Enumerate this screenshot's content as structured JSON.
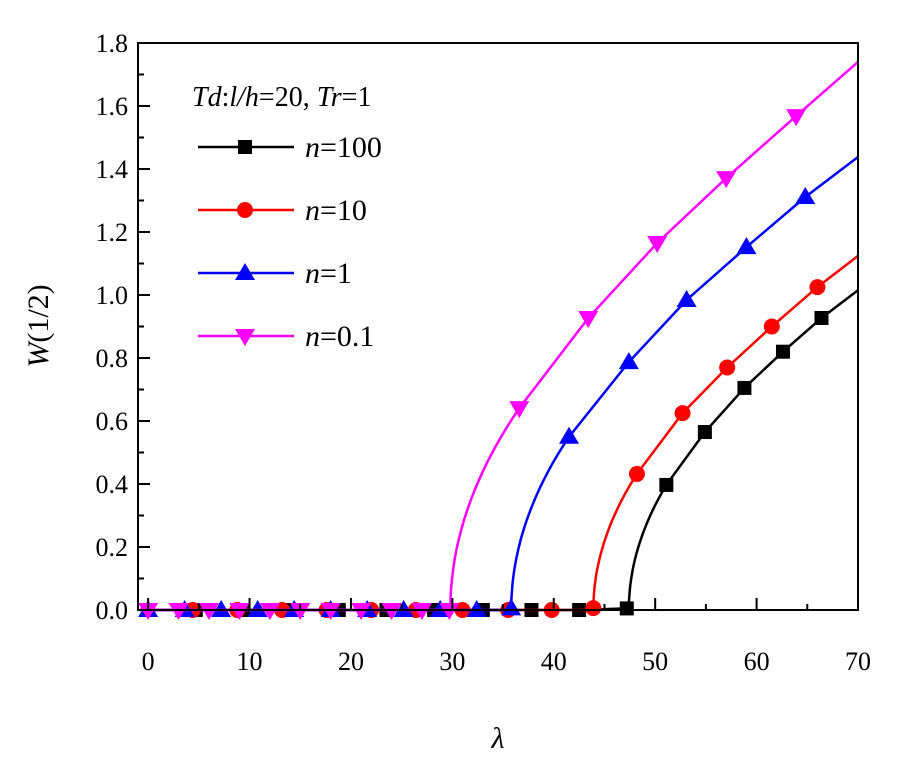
{
  "chart_data": {
    "type": "line",
    "title": "",
    "xlabel": "λ",
    "ylabel_italic": "W",
    "ylabel_rest": "(1/2)",
    "xlim": [
      -1,
      70
    ],
    "ylim": [
      0,
      1.8
    ],
    "xticks": [
      0,
      10,
      20,
      30,
      40,
      50,
      60,
      70
    ],
    "yticks": [
      0.0,
      0.2,
      0.4,
      0.6,
      0.8,
      1.0,
      1.2,
      1.4,
      1.6,
      1.8
    ],
    "grid": false,
    "legend_placement": "top-left",
    "annotation": {
      "p1": "Td",
      "p2": ":",
      "p3": "l/h",
      "p4": "=20, ",
      "p5": "Tr",
      "p6": "=1"
    },
    "series": [
      {
        "name_var": "n",
        "name_val": "=100",
        "color": "#000000",
        "marker": "square",
        "onset": 47.4,
        "markers": [
          [
            4.7,
            0
          ],
          [
            9.4,
            0
          ],
          [
            14.1,
            0
          ],
          [
            18.8,
            0
          ],
          [
            23.5,
            0
          ],
          [
            28.2,
            0
          ],
          [
            33,
            0
          ],
          [
            37.8,
            0
          ],
          [
            42.5,
            0
          ],
          [
            47.2,
            0.005
          ],
          [
            51.1,
            0.397
          ],
          [
            54.9,
            0.565
          ],
          [
            58.8,
            0.705
          ],
          [
            62.6,
            0.82
          ],
          [
            66.4,
            0.927
          ]
        ],
        "end": [
          70,
          1.015
        ]
      },
      {
        "name_var": "n",
        "name_val": "=10",
        "color": "#ff0000",
        "marker": "circle",
        "onset": 43.9,
        "markers": [
          [
            4.4,
            0
          ],
          [
            8.8,
            0
          ],
          [
            13.2,
            0
          ],
          [
            17.6,
            0
          ],
          [
            22,
            0
          ],
          [
            26.4,
            0
          ],
          [
            31,
            0
          ],
          [
            35.5,
            0
          ],
          [
            39.8,
            0
          ],
          [
            43.9,
            0.006
          ],
          [
            48.2,
            0.432
          ],
          [
            52.7,
            0.625
          ],
          [
            57.1,
            0.77
          ],
          [
            61.5,
            0.9
          ],
          [
            66,
            1.025
          ]
        ],
        "end": [
          70,
          1.124
        ]
      },
      {
        "name_var": "n",
        "name_val": "=1",
        "color": "#0000ff",
        "marker": "triangle-up",
        "onset": 35.8,
        "markers": [
          [
            0,
            0
          ],
          [
            3.6,
            0
          ],
          [
            7.2,
            0
          ],
          [
            10.8,
            0
          ],
          [
            14.4,
            0
          ],
          [
            18,
            0
          ],
          [
            21.6,
            0
          ],
          [
            25.2,
            0
          ],
          [
            28.8,
            0
          ],
          [
            32.4,
            0
          ],
          [
            35.8,
            0.005
          ],
          [
            41.5,
            0.55
          ],
          [
            47.4,
            0.787
          ],
          [
            53.1,
            0.984
          ],
          [
            59,
            1.152
          ],
          [
            64.8,
            1.311
          ]
        ],
        "end": [
          70,
          1.438
        ]
      },
      {
        "name_var": "n",
        "name_val": "=0.1",
        "color": "#ff00ff",
        "marker": "triangle-down",
        "onset": 29.8,
        "markers": [
          [
            0,
            0
          ],
          [
            3,
            0
          ],
          [
            6,
            0
          ],
          [
            9,
            0
          ],
          [
            12,
            0
          ],
          [
            15,
            0
          ],
          [
            18,
            0
          ],
          [
            21,
            0
          ],
          [
            24,
            0
          ],
          [
            27,
            0
          ],
          [
            29.7,
            0
          ],
          [
            36.6,
            0.641
          ],
          [
            43.4,
            0.927
          ],
          [
            50.2,
            1.165
          ],
          [
            57,
            1.371
          ],
          [
            63.9,
            1.568
          ]
        ],
        "end": [
          70,
          1.74
        ]
      }
    ]
  }
}
